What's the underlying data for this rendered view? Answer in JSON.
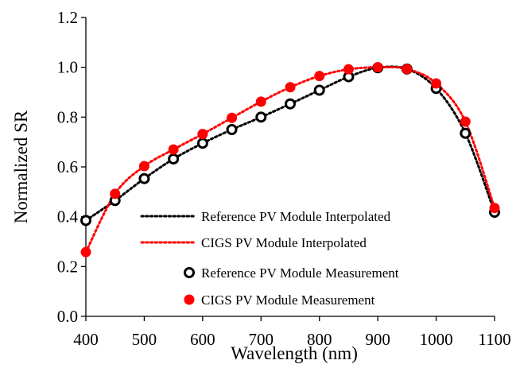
{
  "chart_data": {
    "type": "line",
    "title": "",
    "xlabel": "Wavelength (nm)",
    "ylabel": "Normalized SR",
    "xlim": [
      400,
      1100
    ],
    "ylim": [
      0,
      1.2
    ],
    "xticks": [
      400,
      500,
      600,
      700,
      800,
      900,
      1000,
      1100
    ],
    "yticks": [
      "0.0",
      "0.2",
      "0.4",
      "0.6",
      "0.8",
      "1.0",
      "1.2"
    ],
    "grid": false,
    "legend_position": "lower-left",
    "x": [
      400,
      450,
      500,
      550,
      600,
      650,
      700,
      750,
      800,
      850,
      900,
      950,
      1000,
      1050,
      1100
    ],
    "series": [
      {
        "name": "Reference PV Module Interpolated",
        "style": "dotted-line",
        "color": "#000000",
        "values": [
          0.385,
          0.465,
          0.553,
          0.632,
          0.695,
          0.75,
          0.8,
          0.853,
          0.908,
          0.962,
          0.998,
          0.993,
          0.915,
          0.735,
          0.418
        ]
      },
      {
        "name": "CIGS PV Module Interpolated",
        "style": "dotted-line",
        "color": "#ff0000",
        "values": [
          0.258,
          0.492,
          0.603,
          0.67,
          0.732,
          0.797,
          0.862,
          0.92,
          0.965,
          0.992,
          1.0,
          0.993,
          0.935,
          0.782,
          0.435
        ]
      },
      {
        "name": "Reference PV Module Measurement",
        "style": "hollow-circle",
        "color": "#000000",
        "values": [
          0.385,
          0.465,
          0.553,
          0.632,
          0.695,
          0.75,
          0.8,
          0.853,
          0.908,
          0.962,
          0.998,
          0.993,
          0.915,
          0.735,
          0.418
        ]
      },
      {
        "name": "CIGS PV Module Measurement",
        "style": "filled-circle",
        "color": "#ff0000",
        "values": [
          0.258,
          0.492,
          0.603,
          0.67,
          0.732,
          0.797,
          0.862,
          0.92,
          0.965,
          0.992,
          1.0,
          0.993,
          0.935,
          0.782,
          0.435
        ]
      }
    ]
  }
}
